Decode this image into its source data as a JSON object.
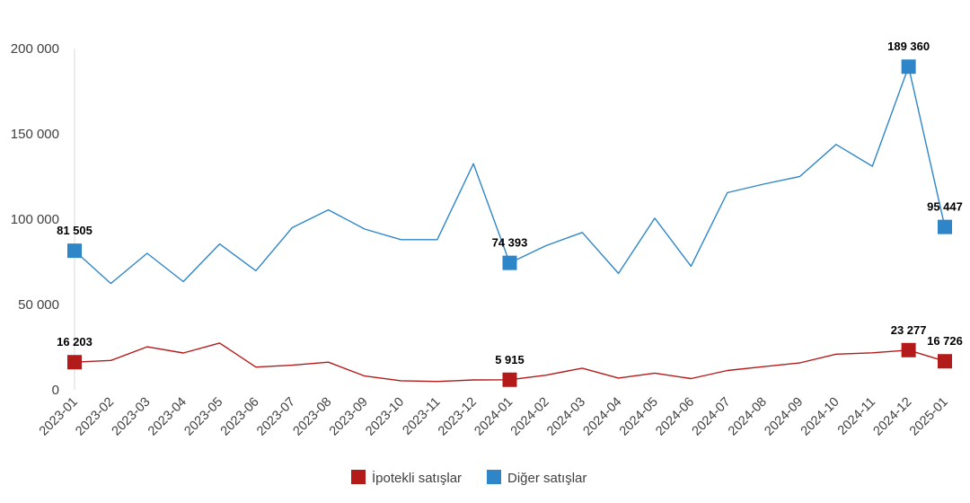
{
  "chart_data": {
    "type": "line",
    "title": "",
    "xlabel": "",
    "ylabel": "",
    "ylim": [
      0,
      200000
    ],
    "y_ticks": [
      0,
      50000,
      100000,
      150000,
      200000
    ],
    "y_tick_labels": [
      "0",
      "50 000",
      "100 000",
      "150 000",
      "200 000"
    ],
    "grid": false,
    "legend_position": "bottom",
    "categories": [
      "2023-01",
      "2023-02",
      "2023-03",
      "2023-04",
      "2023-05",
      "2023-06",
      "2023-07",
      "2023-08",
      "2023-09",
      "2023-10",
      "2023-11",
      "2023-12",
      "2024-01",
      "2024-02",
      "2024-03",
      "2024-04",
      "2024-05",
      "2024-06",
      "2024-07",
      "2024-08",
      "2024-09",
      "2024-10",
      "2024-11",
      "2024-12",
      "2025-01"
    ],
    "series": [
      {
        "name": "İpotekli satışlar",
        "color": "#b31b1b",
        "values": [
          16203,
          17200,
          25200,
          21600,
          27400,
          13300,
          14400,
          16200,
          8100,
          5300,
          4900,
          5800,
          5915,
          8600,
          12700,
          6900,
          9800,
          6600,
          11300,
          13600,
          15800,
          20900,
          21700,
          23277,
          16726
        ],
        "labeled_points": [
          {
            "index": 0,
            "label": "16 203"
          },
          {
            "index": 12,
            "label": "5 915"
          },
          {
            "index": 23,
            "label": "23 277"
          },
          {
            "index": 24,
            "label": "16 726"
          }
        ]
      },
      {
        "name": "Diğer satışlar",
        "color": "#2e86c8",
        "values": [
          81505,
          62300,
          80000,
          63400,
          85500,
          69800,
          95000,
          105500,
          94200,
          88000,
          88000,
          132500,
          74393,
          84500,
          92200,
          68200,
          100600,
          72400,
          115500,
          120500,
          125000,
          143800,
          131000,
          189360,
          95447
        ],
        "labeled_points": [
          {
            "index": 0,
            "label": "81 505"
          },
          {
            "index": 12,
            "label": "74 393"
          },
          {
            "index": 23,
            "label": "189 360"
          },
          {
            "index": 24,
            "label": "95 447"
          }
        ]
      }
    ]
  }
}
